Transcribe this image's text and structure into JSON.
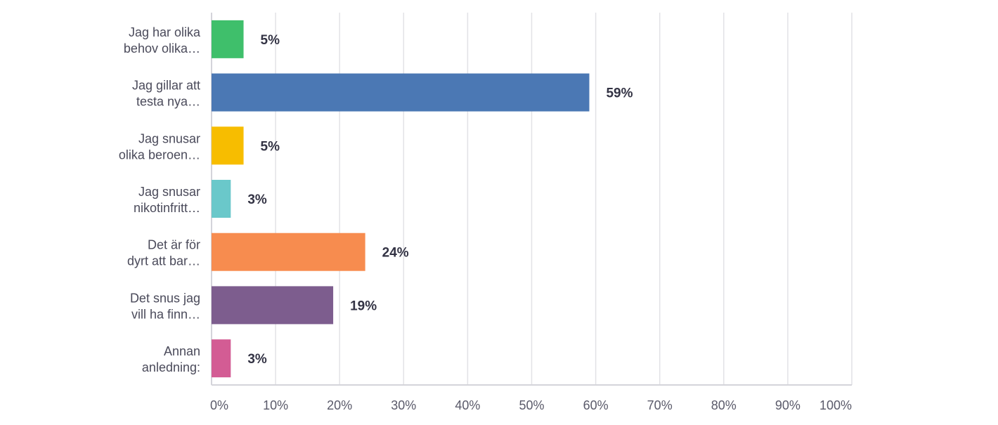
{
  "chart_data": {
    "type": "bar",
    "orientation": "horizontal",
    "title": "",
    "xlabel": "",
    "ylabel": "",
    "xlim": [
      0,
      100
    ],
    "ticks": [
      "0%",
      "10%",
      "20%",
      "30%",
      "40%",
      "50%",
      "60%",
      "70%",
      "80%",
      "90%",
      "100%"
    ],
    "grid": true,
    "legend": "none",
    "categories": [
      [
        "Jag har olika",
        "behov olika…"
      ],
      [
        "Jag gillar att",
        "testa nya…"
      ],
      [
        "Jag snusar",
        "olika beroen…"
      ],
      [
        "Jag snusar",
        "nikotinfritt…"
      ],
      [
        "Det är för",
        "dyrt att bar…"
      ],
      [
        "Det snus jag",
        "vill ha finn…"
      ],
      [
        "Annan",
        "anledning:"
      ]
    ],
    "values": [
      5,
      59,
      5,
      3,
      24,
      19,
      3
    ],
    "value_labels": [
      "5%",
      "59%",
      "5%",
      "3%",
      "24%",
      "19%",
      "3%"
    ],
    "colors": [
      "#3fbf6b",
      "#4b78b4",
      "#f7bd00",
      "#6ac8ca",
      "#f78c4f",
      "#7d5d8e",
      "#d35c94"
    ]
  }
}
